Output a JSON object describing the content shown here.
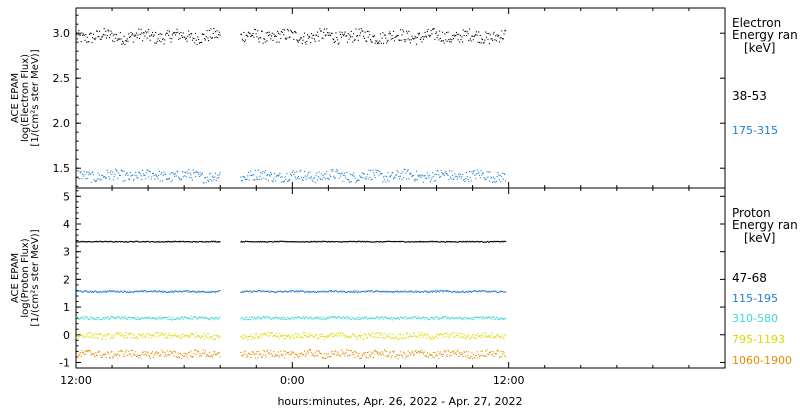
{
  "x_axis": {
    "ticks": [
      "12:00",
      "0:00",
      "12:00"
    ],
    "label": "hours:minutes, Apr. 26, 2022 - Apr. 27, 2022"
  },
  "electron_panel": {
    "ylabel_lines": [
      "ACE EPAM",
      "log(Electron Flux)",
      "[1/(cm²s ster MeV)]"
    ],
    "legend_title": [
      "Electron",
      "Energy ran"
    ],
    "legend_unit": "[keV]"
  },
  "proton_panel": {
    "ylabel_lines": [
      "ACE EPAM",
      "log(Proton Flux)",
      "[1/(cm²s ster MeV)]"
    ],
    "legend_title": [
      "Proton",
      "Energy ran"
    ],
    "legend_unit": "[keV]"
  },
  "chart_data": [
    {
      "type": "scatter",
      "panel": "electron",
      "x_unit": "hours since 2022-04-26 12:00",
      "xlim": [
        0,
        36
      ],
      "ylim": [
        1.28,
        3.28
      ],
      "yticks": [
        1.5,
        2.0,
        2.5,
        3.0
      ],
      "ytick_labels": [
        "1.5",
        "2.0",
        "2.5",
        "3.0"
      ],
      "data_gaps_hours": [
        [
          8.0,
          9.1
        ]
      ],
      "data_end_hours": 23.8,
      "series": [
        {
          "name": "38-53",
          "color": "#000000",
          "mean": 2.97,
          "spread": 0.07
        },
        {
          "name": "175-315",
          "color": "#1f7fd0",
          "mean": 1.42,
          "spread": 0.06
        }
      ]
    },
    {
      "type": "scatter",
      "panel": "proton",
      "x_unit": "hours since 2022-04-26 12:00",
      "xlim": [
        0,
        36
      ],
      "ylim": [
        -1.2,
        5.3
      ],
      "yticks": [
        -1,
        0,
        1,
        2,
        3,
        4,
        5
      ],
      "ytick_labels": [
        "-1",
        "0",
        "1",
        "2",
        "3",
        "4",
        "5"
      ],
      "data_gaps_hours": [
        [
          8.0,
          9.1
        ]
      ],
      "data_end_hours": 23.8,
      "series": [
        {
          "name": "47-68",
          "color": "#000000",
          "mean": 3.38,
          "spread": 0.015
        },
        {
          "name": "115-195",
          "color": "#1f7fd0",
          "mean": 1.58,
          "spread": 0.03
        },
        {
          "name": "310-580",
          "color": "#3fd6d6",
          "mean": 0.62,
          "spread": 0.05
        },
        {
          "name": "795-1193",
          "color": "#d9d900",
          "mean": -0.02,
          "spread": 0.1
        },
        {
          "name": "1060-1900",
          "color": "#e58a00",
          "mean": -0.68,
          "spread": 0.13
        }
      ]
    }
  ]
}
